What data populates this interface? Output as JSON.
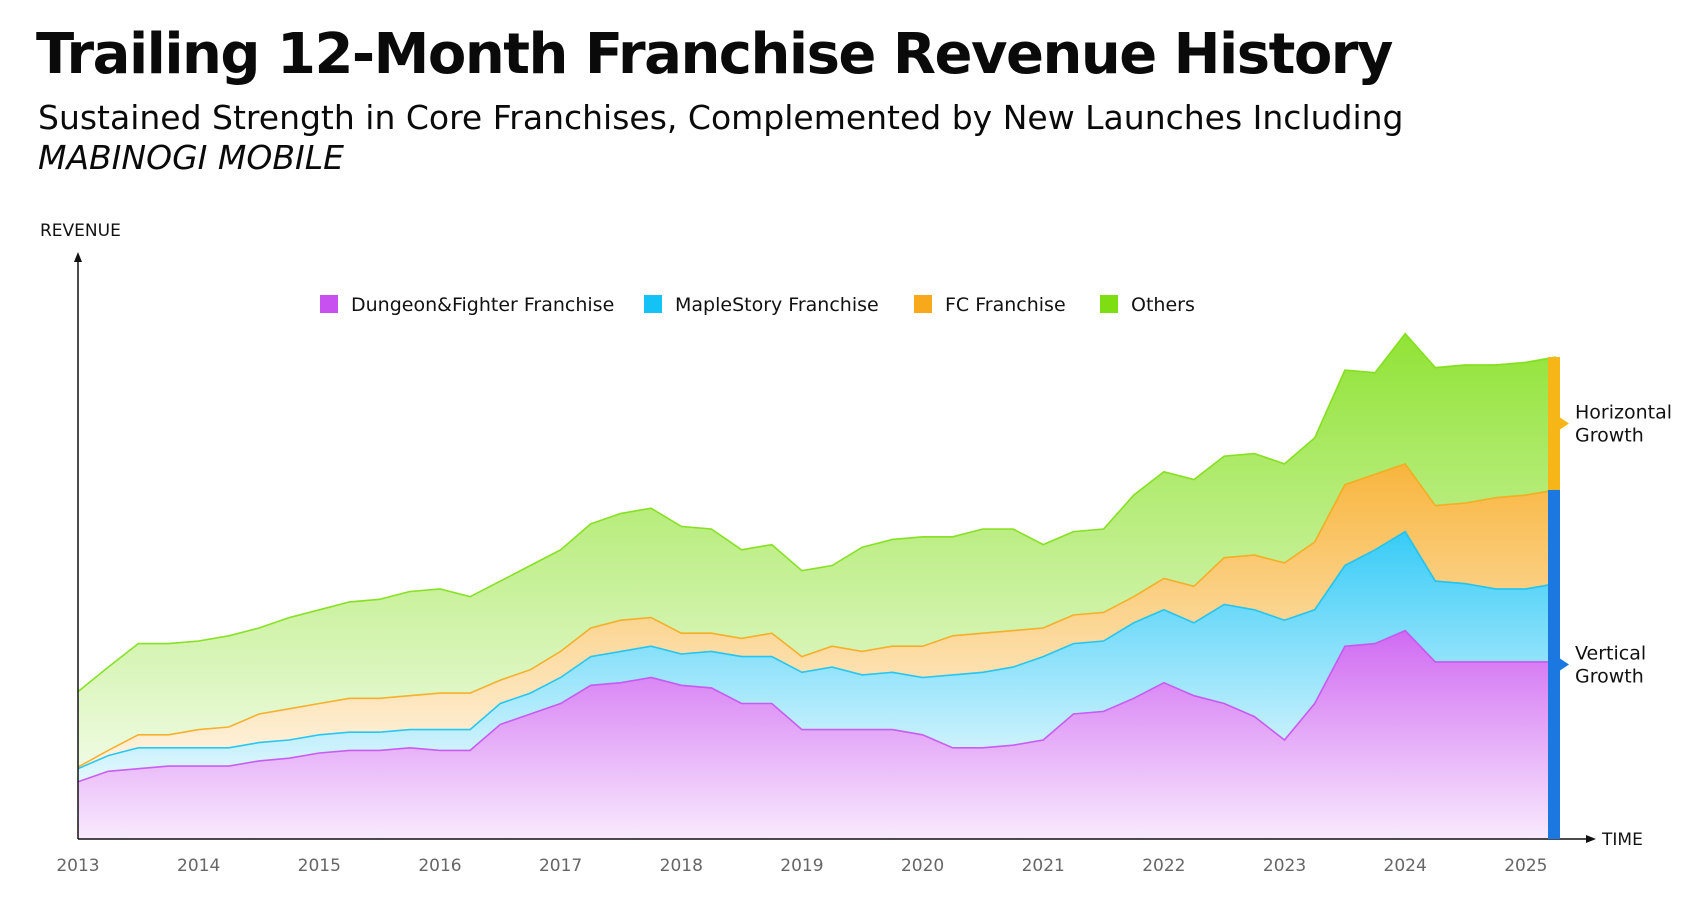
{
  "title": "Trailing 12-Month Franchise Revenue History",
  "subtitle_line1": "Sustained Strength in Core Franchises, Complemented by New Launches Including",
  "subtitle_line2": "MABINOGI MOBILE",
  "chart_data": {
    "type": "area",
    "stacked": true,
    "title": "Trailing 12-Month Franchise Revenue History",
    "ylabel": "REVENUE",
    "xlabel": "TIME",
    "x_range": [
      2013.0,
      2025.25
    ],
    "y_range": [
      0,
      100
    ],
    "x_ticks": [
      "2013",
      "2014",
      "2015",
      "2016",
      "2017",
      "2018",
      "2019",
      "2020",
      "2021",
      "2022",
      "2023",
      "2024",
      "2025"
    ],
    "x": [
      2013.0,
      2013.25,
      2013.5,
      2013.75,
      2014.0,
      2014.25,
      2014.5,
      2014.75,
      2015.0,
      2015.25,
      2015.5,
      2015.75,
      2016.0,
      2016.25,
      2016.5,
      2016.75,
      2017.0,
      2017.25,
      2017.5,
      2017.75,
      2018.0,
      2018.25,
      2018.5,
      2018.75,
      2019.0,
      2019.25,
      2019.5,
      2019.75,
      2020.0,
      2020.25,
      2020.5,
      2020.75,
      2021.0,
      2021.25,
      2021.5,
      2021.75,
      2022.0,
      2022.25,
      2022.5,
      2022.75,
      2023.0,
      2023.25,
      2023.5,
      2023.75,
      2024.0,
      2024.25,
      2024.5,
      2024.75,
      2025.0,
      2025.25
    ],
    "series": [
      {
        "name": "Dungeon&Fighter Franchise",
        "color": "#c850f0",
        "values": [
          11,
          13,
          13.5,
          14,
          14,
          14,
          15,
          15.5,
          16.5,
          17,
          17,
          17.5,
          17,
          17,
          22,
          24,
          26,
          29.5,
          30,
          31,
          29.5,
          29,
          26,
          26,
          21,
          21,
          21,
          21,
          20,
          17.5,
          17.5,
          18,
          19,
          24,
          24.5,
          27,
          30,
          27.5,
          26,
          23.5,
          19,
          26,
          37,
          37.5,
          40,
          34,
          34,
          34,
          34,
          34
        ]
      },
      {
        "name": "MapleStory Franchise",
        "color": "#14c2f5",
        "values": [
          2.5,
          3,
          4,
          3.5,
          3.5,
          3.5,
          3.5,
          3.5,
          3.5,
          3.5,
          3.5,
          3.5,
          4,
          4,
          4,
          4,
          5,
          5.5,
          6,
          6,
          6,
          7,
          9,
          9,
          11,
          12,
          10.5,
          11,
          11,
          14,
          14.5,
          15,
          16,
          13.5,
          13.5,
          14.5,
          14,
          14,
          19,
          20.5,
          23,
          18,
          15.5,
          18,
          19,
          15.5,
          15,
          14,
          14,
          15
        ]
      },
      {
        "name": "FC Franchise",
        "color": "#f7a81b",
        "values": [
          0.3,
          1,
          2.5,
          2.5,
          3.5,
          4,
          5.5,
          6,
          6,
          6.5,
          6.5,
          6.5,
          7,
          7,
          4.5,
          4.5,
          5,
          5.5,
          6,
          5.5,
          4,
          3.5,
          3.5,
          4.5,
          3,
          4,
          4.5,
          5,
          6,
          7.5,
          7.5,
          7,
          5.5,
          5.5,
          5.5,
          5,
          6,
          7,
          9,
          10.5,
          11,
          13,
          15.5,
          14.5,
          13,
          14.5,
          15.5,
          17.5,
          18,
          18
        ]
      },
      {
        "name": "Others",
        "color": "#7dde12",
        "values": [
          14.5,
          16,
          17.5,
          17.5,
          17,
          17.5,
          16.5,
          17.5,
          18,
          18.5,
          19,
          20,
          20,
          18.5,
          19,
          20,
          19.5,
          20,
          20.5,
          21,
          20.5,
          20,
          17,
          17,
          16.5,
          15.5,
          20,
          20.5,
          21,
          19,
          20,
          19.5,
          16,
          16,
          16,
          19.5,
          20.5,
          20.5,
          19.5,
          19.5,
          19,
          20,
          22,
          19.5,
          25,
          26.5,
          26.5,
          25.5,
          25.5,
          25.5
        ]
      }
    ],
    "annotations": [
      {
        "text": [
          "Horizontal",
          "Growth"
        ],
        "color": "#f7b618"
      },
      {
        "text": [
          "Vertical",
          "Growth"
        ],
        "color": "#1a78e0"
      }
    ],
    "legend_position": "top-center",
    "grid": false
  }
}
